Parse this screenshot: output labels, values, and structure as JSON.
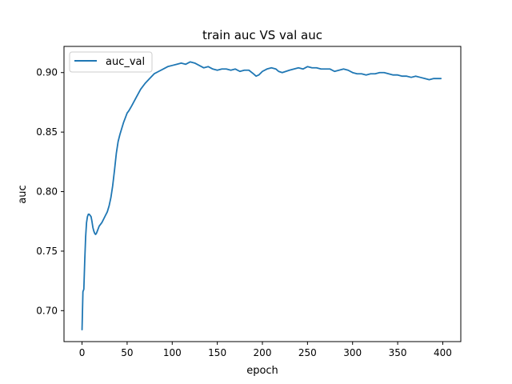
{
  "chart_data": {
    "type": "line",
    "title": "train auc VS val auc",
    "xlabel": "epoch",
    "ylabel": "auc",
    "xlim": [
      -20,
      420
    ],
    "ylim": [
      0.674,
      0.922
    ],
    "xticks": [
      0,
      50,
      100,
      150,
      200,
      250,
      300,
      350,
      400
    ],
    "yticks": [
      0.7,
      0.75,
      0.8,
      0.85,
      0.9
    ],
    "grid": false,
    "legend_position": "top-left",
    "series": [
      {
        "name": "auc_val",
        "color": "#1f77b4",
        "points": [
          [
            0,
            0.684
          ],
          [
            1,
            0.716
          ],
          [
            2,
            0.718
          ],
          [
            3,
            0.742
          ],
          [
            4,
            0.762
          ],
          [
            5,
            0.774
          ],
          [
            6,
            0.779
          ],
          [
            7,
            0.781
          ],
          [
            8,
            0.781
          ],
          [
            9,
            0.78
          ],
          [
            10,
            0.779
          ],
          [
            11,
            0.775
          ],
          [
            12,
            0.77
          ],
          [
            13,
            0.767
          ],
          [
            14,
            0.765
          ],
          [
            15,
            0.764
          ],
          [
            16,
            0.765
          ],
          [
            17,
            0.767
          ],
          [
            18,
            0.769
          ],
          [
            19,
            0.771
          ],
          [
            20,
            0.772
          ],
          [
            22,
            0.774
          ],
          [
            24,
            0.777
          ],
          [
            26,
            0.78
          ],
          [
            28,
            0.783
          ],
          [
            30,
            0.788
          ],
          [
            32,
            0.795
          ],
          [
            34,
            0.805
          ],
          [
            36,
            0.818
          ],
          [
            38,
            0.832
          ],
          [
            40,
            0.842
          ],
          [
            42,
            0.848
          ],
          [
            44,
            0.853
          ],
          [
            46,
            0.858
          ],
          [
            48,
            0.862
          ],
          [
            50,
            0.866
          ],
          [
            52,
            0.868
          ],
          [
            55,
            0.872
          ],
          [
            60,
            0.879
          ],
          [
            65,
            0.886
          ],
          [
            70,
            0.891
          ],
          [
            75,
            0.895
          ],
          [
            80,
            0.899
          ],
          [
            85,
            0.901
          ],
          [
            90,
            0.903
          ],
          [
            95,
            0.905
          ],
          [
            100,
            0.906
          ],
          [
            105,
            0.907
          ],
          [
            110,
            0.908
          ],
          [
            115,
            0.907
          ],
          [
            120,
            0.909
          ],
          [
            125,
            0.908
          ],
          [
            130,
            0.906
          ],
          [
            135,
            0.904
          ],
          [
            140,
            0.905
          ],
          [
            145,
            0.903
          ],
          [
            150,
            0.902
          ],
          [
            155,
            0.903
          ],
          [
            160,
            0.903
          ],
          [
            165,
            0.902
          ],
          [
            170,
            0.903
          ],
          [
            175,
            0.901
          ],
          [
            180,
            0.902
          ],
          [
            185,
            0.902
          ],
          [
            190,
            0.899
          ],
          [
            193,
            0.897
          ],
          [
            196,
            0.898
          ],
          [
            200,
            0.901
          ],
          [
            205,
            0.903
          ],
          [
            210,
            0.904
          ],
          [
            215,
            0.903
          ],
          [
            218,
            0.901
          ],
          [
            222,
            0.9
          ],
          [
            226,
            0.901
          ],
          [
            230,
            0.902
          ],
          [
            235,
            0.903
          ],
          [
            240,
            0.904
          ],
          [
            245,
            0.903
          ],
          [
            250,
            0.905
          ],
          [
            255,
            0.904
          ],
          [
            260,
            0.904
          ],
          [
            265,
            0.903
          ],
          [
            270,
            0.903
          ],
          [
            275,
            0.903
          ],
          [
            280,
            0.901
          ],
          [
            285,
            0.902
          ],
          [
            290,
            0.903
          ],
          [
            295,
            0.902
          ],
          [
            300,
            0.9
          ],
          [
            305,
            0.899
          ],
          [
            310,
            0.899
          ],
          [
            315,
            0.898
          ],
          [
            320,
            0.899
          ],
          [
            325,
            0.899
          ],
          [
            330,
            0.9
          ],
          [
            335,
            0.9
          ],
          [
            340,
            0.899
          ],
          [
            345,
            0.898
          ],
          [
            350,
            0.898
          ],
          [
            355,
            0.897
          ],
          [
            360,
            0.897
          ],
          [
            365,
            0.896
          ],
          [
            370,
            0.897
          ],
          [
            375,
            0.896
          ],
          [
            380,
            0.895
          ],
          [
            385,
            0.894
          ],
          [
            390,
            0.895
          ],
          [
            395,
            0.895
          ],
          [
            398,
            0.895
          ]
        ]
      }
    ]
  }
}
